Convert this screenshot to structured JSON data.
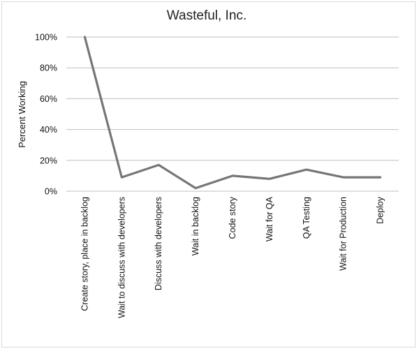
{
  "chart_data": {
    "type": "line",
    "title": "Wasteful, Inc.",
    "xlabel": "",
    "ylabel": "Percent Working",
    "categories": [
      "Create story, place in backlog",
      "Wait to discuss with developers",
      "Discuss with developers",
      "Wait in backlog",
      "Code story",
      "Wait for QA",
      "QA Testing",
      "Wait for Production",
      "Deploy"
    ],
    "series": [
      {
        "values": [
          100,
          9,
          17,
          2,
          10,
          8,
          14,
          9,
          9
        ]
      }
    ],
    "ylim": [
      0,
      100
    ],
    "y_ticks": [
      0,
      20,
      40,
      60,
      80,
      100
    ],
    "y_tick_labels": [
      "0%",
      "20%",
      "40%",
      "60%",
      "80%",
      "100%"
    ],
    "grid": "horizontal",
    "legend": "none",
    "colors": {
      "series": "#767676",
      "grid": "#bfbfbf",
      "text": "#111111"
    }
  }
}
